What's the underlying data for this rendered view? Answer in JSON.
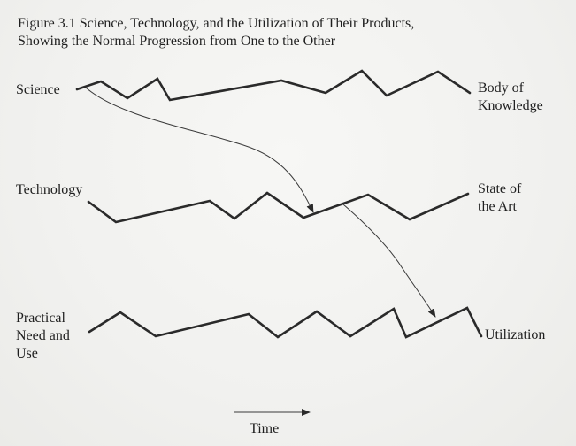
{
  "figure": {
    "caption_line1": "Figure 3.1 Science, Technology, and the Utilization of Their Products,",
    "caption_line2": "Showing the Normal Progression from One to the Other"
  },
  "rows": {
    "science": {
      "left_label": [
        "Science"
      ],
      "right_label": [
        "Body of",
        "Knowledge"
      ]
    },
    "technology": {
      "left_label": [
        "Technology"
      ],
      "right_label": [
        "State of",
        "the Art"
      ]
    },
    "utilization": {
      "left_label": [
        "Practical",
        "Need and",
        "Use"
      ],
      "right_label": [
        "Utilization"
      ]
    }
  },
  "time_axis": {
    "label": "Time"
  }
}
